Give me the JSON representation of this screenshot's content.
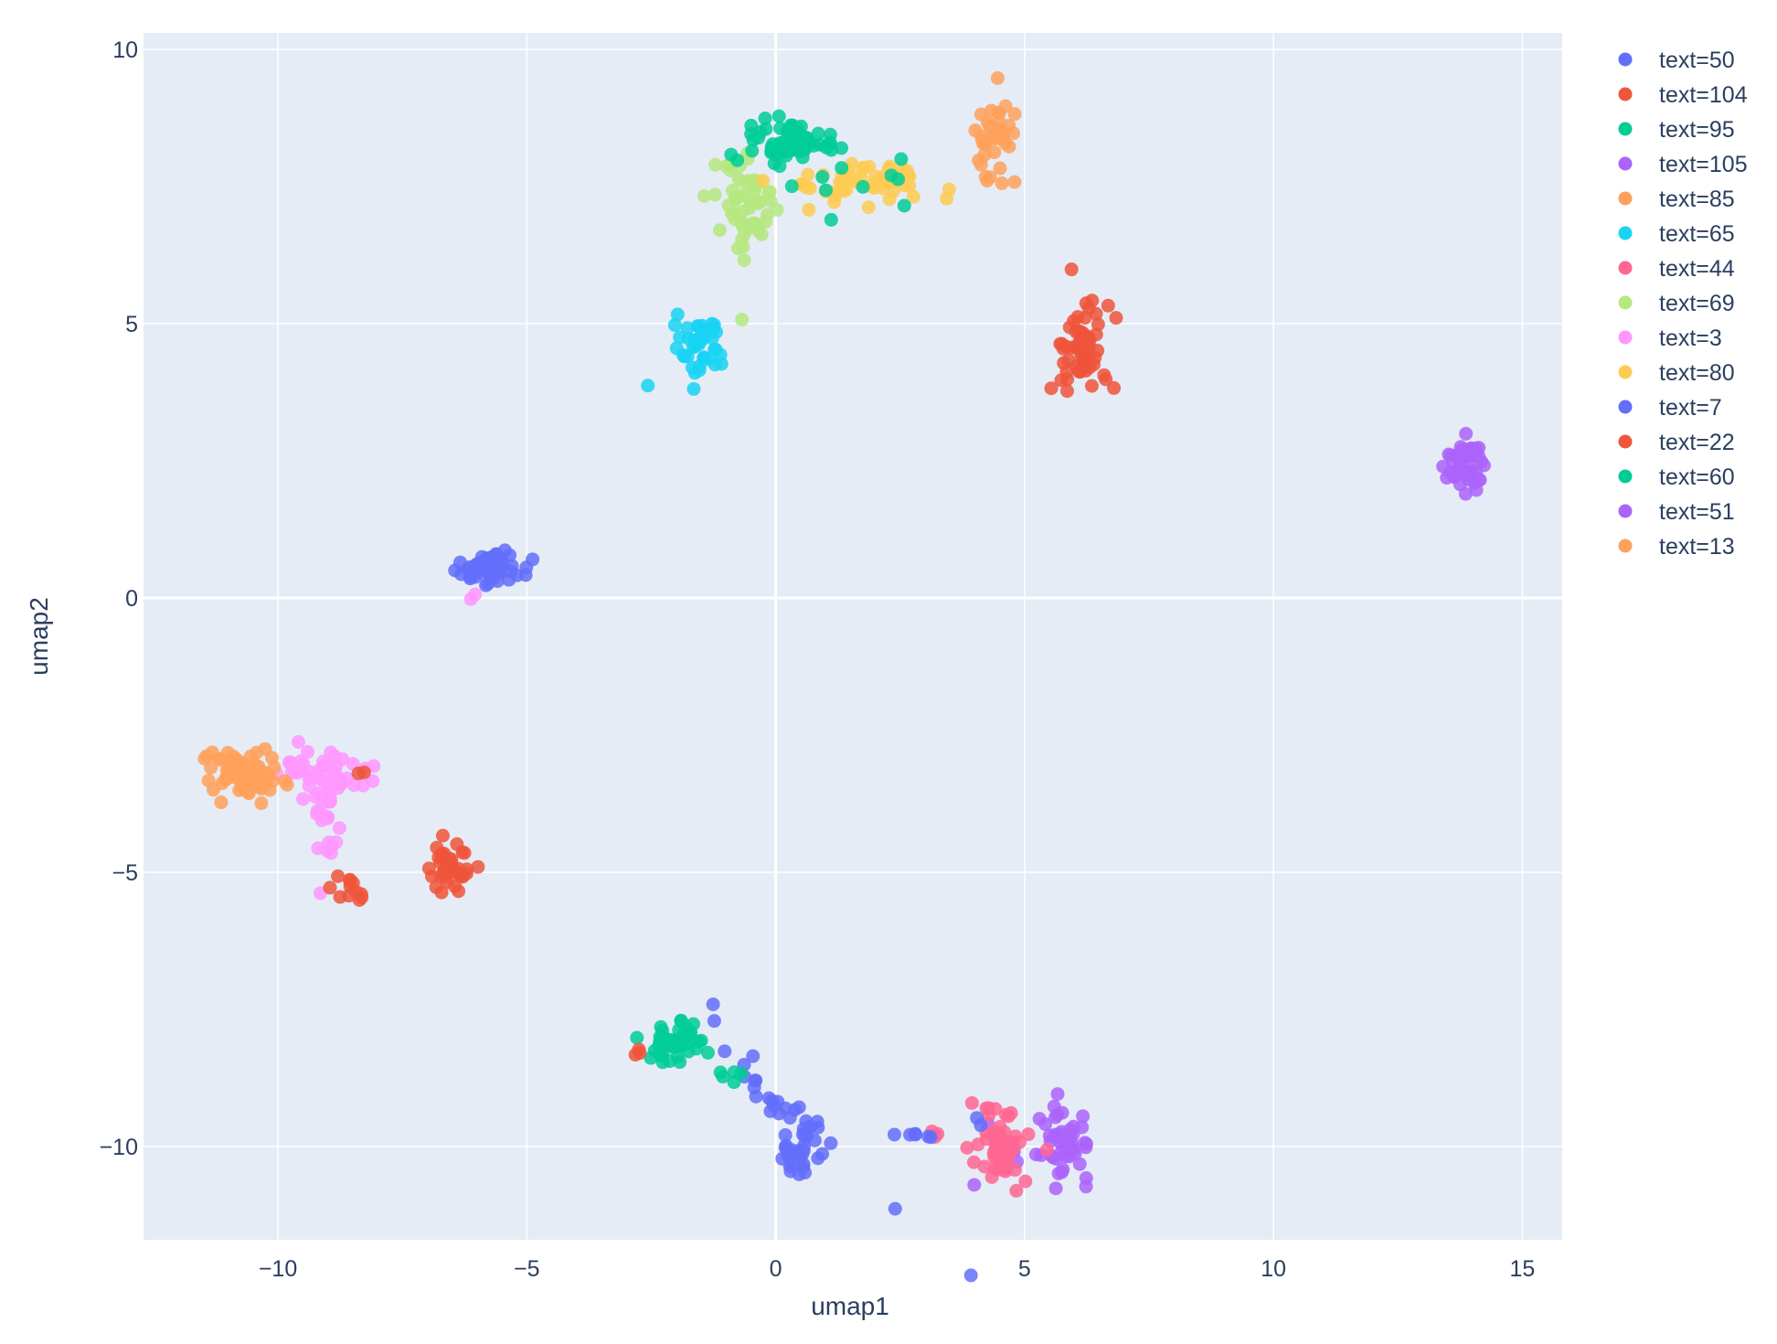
{
  "chart_data": {
    "type": "scatter",
    "title": "",
    "xlabel": "umap1",
    "ylabel": "umap2",
    "xlim": [
      -12.7,
      15.8
    ],
    "ylim": [
      -11.7,
      10.3
    ],
    "xticks": [
      -10,
      -5,
      0,
      5,
      10,
      15
    ],
    "yticks": [
      -10,
      -5,
      0,
      5,
      10
    ],
    "xtick_labels": [
      "−10",
      "−5",
      "0",
      "5",
      "10",
      "15"
    ],
    "ytick_labels": [
      "−10",
      "−5",
      "0",
      "5",
      "10"
    ],
    "grid": true,
    "legend_position": "right",
    "plot_bgcolor": "#e5ecf6",
    "series": [
      {
        "name": "text=50",
        "color": "#636efa",
        "clusters": [
          {
            "cx": 0.3,
            "cy": -9.4,
            "sx": 1.2,
            "sy": 0.18,
            "n": 30,
            "angle": -40
          },
          {
            "cx": 0.4,
            "cy": -10.1,
            "sx": 0.25,
            "sy": 0.25,
            "n": 25,
            "angle": 0
          }
        ]
      },
      {
        "name": "text=104",
        "color": "#ef553b",
        "clusters": [
          {
            "cx": 6.1,
            "cy": 4.5,
            "sx": 0.3,
            "sy": 0.45,
            "n": 60,
            "angle": 0
          }
        ]
      },
      {
        "name": "text=95",
        "color": "#00cc96",
        "clusters": [
          {
            "cx": -2.0,
            "cy": -8.1,
            "sx": 0.35,
            "sy": 0.22,
            "n": 45,
            "angle": 0
          },
          {
            "cx": -0.8,
            "cy": -8.7,
            "sx": 0.2,
            "sy": 0.08,
            "n": 5,
            "angle": 0
          }
        ]
      },
      {
        "name": "text=105",
        "color": "#ab63fa",
        "clusters": [
          {
            "cx": 5.8,
            "cy": -9.9,
            "sx": 0.25,
            "sy": 0.35,
            "n": 45,
            "angle": 0
          },
          {
            "cx": 4.8,
            "cy": -10.0,
            "sx": 0.3,
            "sy": 0.2,
            "n": 8,
            "angle": 0
          }
        ]
      },
      {
        "name": "text=85",
        "color": "#ffa15a",
        "clusters": [
          {
            "cx": 4.4,
            "cy": 8.4,
            "sx": 0.22,
            "sy": 0.35,
            "n": 40,
            "angle": 0
          }
        ]
      },
      {
        "name": "text=65",
        "color": "#19d3f3",
        "clusters": [
          {
            "cx": -1.5,
            "cy": 4.6,
            "sx": 0.25,
            "sy": 0.3,
            "n": 45,
            "angle": 0
          }
        ]
      },
      {
        "name": "text=44",
        "color": "#ff6692",
        "clusters": [
          {
            "cx": 4.5,
            "cy": -10.0,
            "sx": 0.3,
            "sy": 0.35,
            "n": 50,
            "angle": 0
          },
          {
            "cx": 3.2,
            "cy": -9.8,
            "sx": 0.1,
            "sy": 0.04,
            "n": 3,
            "angle": 0
          }
        ]
      },
      {
        "name": "text=69",
        "color": "#b6e880",
        "clusters": [
          {
            "cx": -0.6,
            "cy": 7.1,
            "sx": 0.35,
            "sy": 0.5,
            "n": 60,
            "angle": 0
          }
        ]
      },
      {
        "name": "text=3",
        "color": "#ff97ff",
        "clusters": [
          {
            "cx": -9.0,
            "cy": -3.2,
            "sx": 0.45,
            "sy": 0.25,
            "n": 45,
            "angle": 0
          },
          {
            "cx": -9.0,
            "cy": -4.1,
            "sx": 0.15,
            "sy": 0.6,
            "n": 25,
            "angle": 0
          },
          {
            "cx": -6.1,
            "cy": 0.0,
            "sx": 0.06,
            "sy": 0.06,
            "n": 2,
            "angle": 0
          }
        ]
      },
      {
        "name": "text=80",
        "color": "#fecb52",
        "clusters": [
          {
            "cx": 1.7,
            "cy": 7.6,
            "sx": 0.8,
            "sy": 0.2,
            "n": 60,
            "angle": 0
          }
        ]
      },
      {
        "name": "text=7",
        "color": "#636efa",
        "clusters": [
          {
            "cx": -5.7,
            "cy": 0.55,
            "sx": 0.3,
            "sy": 0.16,
            "n": 55,
            "angle": 0
          },
          {
            "cx": 2.8,
            "cy": -9.8,
            "sx": 0.25,
            "sy": 0.03,
            "n": 6,
            "angle": 0
          },
          {
            "cx": 4.1,
            "cy": -9.5,
            "sx": 0.05,
            "sy": 0.05,
            "n": 2,
            "angle": 0
          }
        ]
      },
      {
        "name": "text=22",
        "color": "#ef553b",
        "clusters": [
          {
            "cx": -6.5,
            "cy": -4.9,
            "sx": 0.2,
            "sy": 0.2,
            "n": 40,
            "angle": 0
          },
          {
            "cx": -8.6,
            "cy": -5.2,
            "sx": 0.25,
            "sy": 0.15,
            "n": 12,
            "angle": -20
          },
          {
            "cx": -8.4,
            "cy": -3.2,
            "sx": 0.05,
            "sy": 0.04,
            "n": 2,
            "angle": 0
          },
          {
            "cx": -2.8,
            "cy": -8.2,
            "sx": 0.1,
            "sy": 0.06,
            "n": 3,
            "angle": 0
          }
        ]
      },
      {
        "name": "text=60",
        "color": "#00cc96",
        "clusters": [
          {
            "cx": 0.2,
            "cy": 8.3,
            "sx": 0.45,
            "sy": 0.2,
            "n": 60,
            "angle": 0
          },
          {
            "cx": 1.5,
            "cy": 7.6,
            "sx": 0.7,
            "sy": 0.35,
            "n": 12,
            "angle": 0
          }
        ]
      },
      {
        "name": "text=51",
        "color": "#ab63fa",
        "clusters": [
          {
            "cx": 13.8,
            "cy": 2.4,
            "sx": 0.2,
            "sy": 0.3,
            "n": 40,
            "angle": 0
          }
        ]
      },
      {
        "name": "text=13",
        "color": "#ffa15a",
        "clusters": [
          {
            "cx": -10.8,
            "cy": -3.15,
            "sx": 0.3,
            "sy": 0.22,
            "n": 55,
            "angle": 0
          },
          {
            "cx": -10.2,
            "cy": -3.35,
            "sx": 0.25,
            "sy": 0.1,
            "n": 15,
            "angle": 0
          }
        ]
      }
    ]
  }
}
